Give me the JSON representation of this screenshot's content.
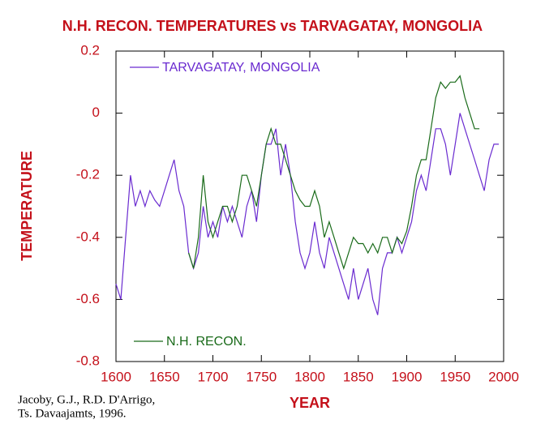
{
  "chart_data": {
    "type": "line",
    "title": "N.H. RECON. TEMPERATURES vs TARVAGATAY, MONGOLIA",
    "x_label": "YEAR",
    "y_label": "TEMPERATURE",
    "annotation": [
      "Jacoby, G.J., R.D. D'Arrigo,",
      "Ts. Davaajamts, 1996."
    ],
    "xlim": [
      1600,
      2000
    ],
    "xticks": [
      1600,
      1650,
      1700,
      1750,
      1800,
      1850,
      1900,
      1950,
      2000
    ],
    "ylim": [
      -0.8,
      0.2
    ],
    "yticks": [
      0.2,
      0,
      -0.2,
      -0.4,
      -0.6,
      -0.8
    ],
    "x": [
      1600,
      1605,
      1610,
      1615,
      1620,
      1625,
      1630,
      1635,
      1640,
      1645,
      1650,
      1655,
      1660,
      1665,
      1670,
      1675,
      1680,
      1685,
      1690,
      1695,
      1700,
      1705,
      1710,
      1715,
      1720,
      1725,
      1730,
      1735,
      1740,
      1745,
      1750,
      1755,
      1760,
      1765,
      1770,
      1775,
      1780,
      1785,
      1790,
      1795,
      1800,
      1805,
      1810,
      1815,
      1820,
      1825,
      1830,
      1835,
      1840,
      1845,
      1850,
      1855,
      1860,
      1865,
      1870,
      1875,
      1880,
      1885,
      1890,
      1895,
      1900,
      1905,
      1910,
      1915,
      1920,
      1925,
      1930,
      1935,
      1940,
      1945,
      1950,
      1955,
      1960,
      1965,
      1970,
      1975,
      1980,
      1985,
      1990,
      1995
    ],
    "series": [
      {
        "name": "TARVAGATAY, MONGOLIA",
        "color": "#6a2bd0",
        "values": [
          -0.55,
          -0.6,
          -0.4,
          -0.2,
          -0.3,
          -0.25,
          -0.3,
          -0.25,
          -0.28,
          -0.3,
          -0.25,
          -0.2,
          -0.15,
          -0.25,
          -0.3,
          -0.45,
          -0.5,
          -0.45,
          -0.3,
          -0.4,
          -0.35,
          -0.4,
          -0.3,
          -0.35,
          -0.3,
          -0.35,
          -0.4,
          -0.3,
          -0.25,
          -0.35,
          -0.2,
          -0.1,
          -0.1,
          -0.05,
          -0.2,
          -0.1,
          -0.2,
          -0.35,
          -0.45,
          -0.5,
          -0.45,
          -0.35,
          -0.45,
          -0.5,
          -0.4,
          -0.45,
          -0.5,
          -0.55,
          -0.6,
          -0.5,
          -0.6,
          -0.55,
          -0.5,
          -0.6,
          -0.65,
          -0.5,
          -0.45,
          -0.45,
          -0.4,
          -0.45,
          -0.4,
          -0.35,
          -0.25,
          -0.2,
          -0.25,
          -0.15,
          -0.05,
          -0.05,
          -0.1,
          -0.2,
          -0.1,
          0,
          -0.05,
          -0.1,
          -0.15,
          -0.2,
          -0.25,
          -0.15,
          -0.1,
          -0.1
        ]
      },
      {
        "name": "N.H. RECON.",
        "color": "#1a6b1a",
        "values": [
          null,
          null,
          null,
          null,
          null,
          null,
          null,
          null,
          null,
          null,
          null,
          null,
          null,
          null,
          null,
          -0.45,
          -0.5,
          -0.4,
          -0.2,
          -0.35,
          -0.4,
          -0.35,
          -0.3,
          -0.3,
          -0.35,
          -0.3,
          -0.2,
          -0.2,
          -0.25,
          -0.3,
          -0.2,
          -0.1,
          -0.05,
          -0.1,
          -0.1,
          -0.15,
          -0.2,
          -0.25,
          -0.28,
          -0.3,
          -0.3,
          -0.25,
          -0.3,
          -0.4,
          -0.35,
          -0.4,
          -0.45,
          -0.5,
          -0.45,
          -0.4,
          -0.42,
          -0.42,
          -0.45,
          -0.42,
          -0.45,
          -0.4,
          -0.4,
          -0.45,
          -0.4,
          -0.42,
          -0.38,
          -0.3,
          -0.2,
          -0.15,
          -0.15,
          -0.05,
          0.05,
          0.1,
          0.08,
          0.1,
          0.1,
          0.12,
          0.05,
          0,
          -0.05,
          -0.05,
          null,
          null,
          null,
          null
        ]
      }
    ]
  }
}
